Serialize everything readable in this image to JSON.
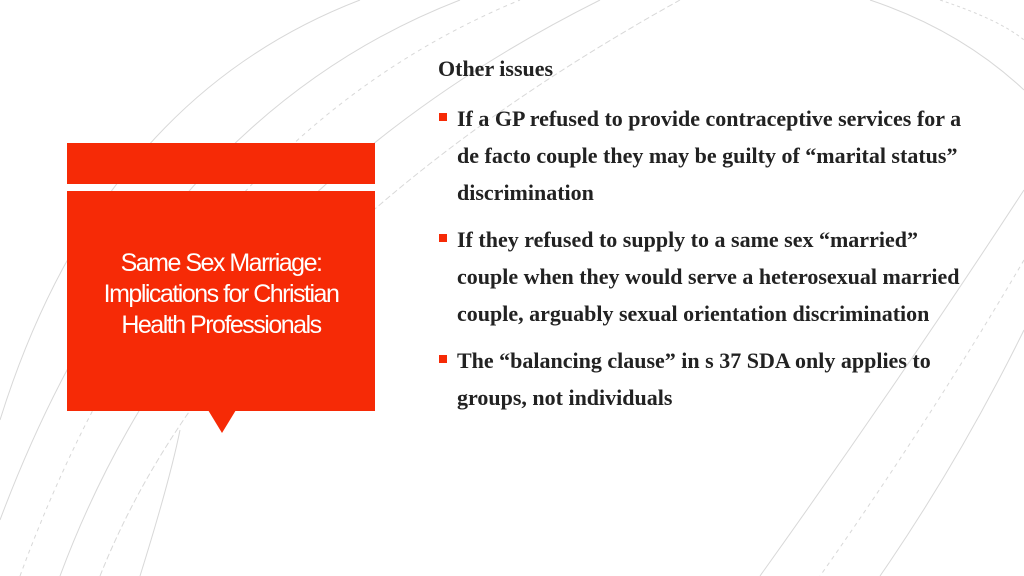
{
  "accent_color": "#f62a06",
  "sidebar": {
    "title": "Same Sex Marriage: Implications for Christian Health Professionals"
  },
  "content": {
    "heading": "Other issues",
    "bullets": [
      "If a GP refused to provide contraceptive services for a de facto couple they may be guilty of “marital status” discrimination",
      "If they refused to supply to a same sex “married” couple when they would serve a heterosexual married couple, arguably sexual orientation discrimination",
      "The “balancing clause” in s 37 SDA only applies to groups, not individuals"
    ]
  }
}
